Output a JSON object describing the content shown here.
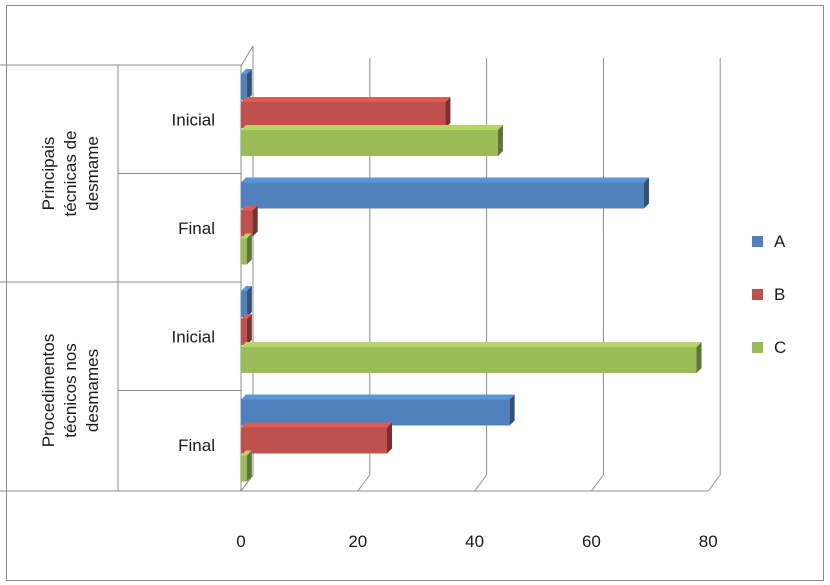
{
  "chart_data": {
    "type": "bar",
    "orientation": "horizontal",
    "style": "3d-clustered",
    "groups": [
      {
        "lines": [
          "Principais",
          "técnicas  de",
          "desmame"
        ],
        "categories": [
          "Inicial",
          "Final"
        ]
      },
      {
        "lines": [
          "Procedimentos",
          "técnicos nos",
          "desmames"
        ],
        "categories": [
          "Inicial",
          "Final"
        ]
      }
    ],
    "series": [
      {
        "name": "A",
        "color": "#4f81bd",
        "values": [
          1,
          69,
          1,
          46
        ]
      },
      {
        "name": "B",
        "color": "#c0504d",
        "values": [
          35,
          2,
          1,
          25
        ]
      },
      {
        "name": "C",
        "color": "#9bbb59",
        "values": [
          44,
          1,
          78,
          1
        ]
      }
    ],
    "xlim": [
      0,
      80
    ],
    "xticks": [
      "0",
      "20",
      "40",
      "60",
      "80"
    ],
    "grid": true,
    "legend_position": "right"
  }
}
